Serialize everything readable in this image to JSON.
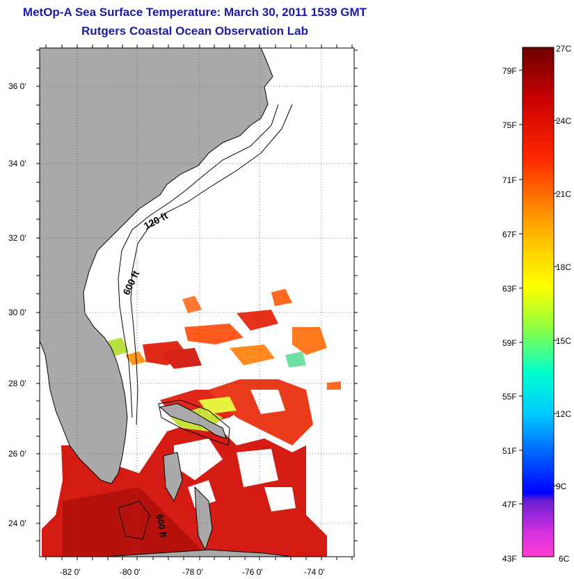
{
  "title": "MetOp-A Sea Surface Temperature:  March 30, 2011 1539 GMT",
  "subtitle": "Rutgers Coastal Ocean Observation Lab",
  "map": {
    "lat_labels": [
      "36 0'",
      "34 0'",
      "32 0'",
      "30 0'",
      "28 0'",
      "26 0'",
      "24 0'"
    ],
    "lon_labels": [
      "-82 0'",
      "-80 0'",
      "-78 0'",
      "-76 0'",
      "-74 0'"
    ],
    "isobath_labels": [
      "120 ft",
      "600 ft",
      "600 ft"
    ],
    "colors": {
      "land": "#a9a9a9",
      "ocean_none": "#ffffff",
      "warm": "#e21a12"
    }
  },
  "colorbar": {
    "fahrenheit_labels": [
      "79F",
      "75F",
      "71F",
      "67F",
      "63F",
      "59F",
      "55F",
      "51F",
      "47F",
      "43F"
    ],
    "celsius_labels": [
      "27C",
      "24C",
      "21C",
      "18C",
      "15C",
      "12C",
      "9C",
      "6C"
    ]
  }
}
